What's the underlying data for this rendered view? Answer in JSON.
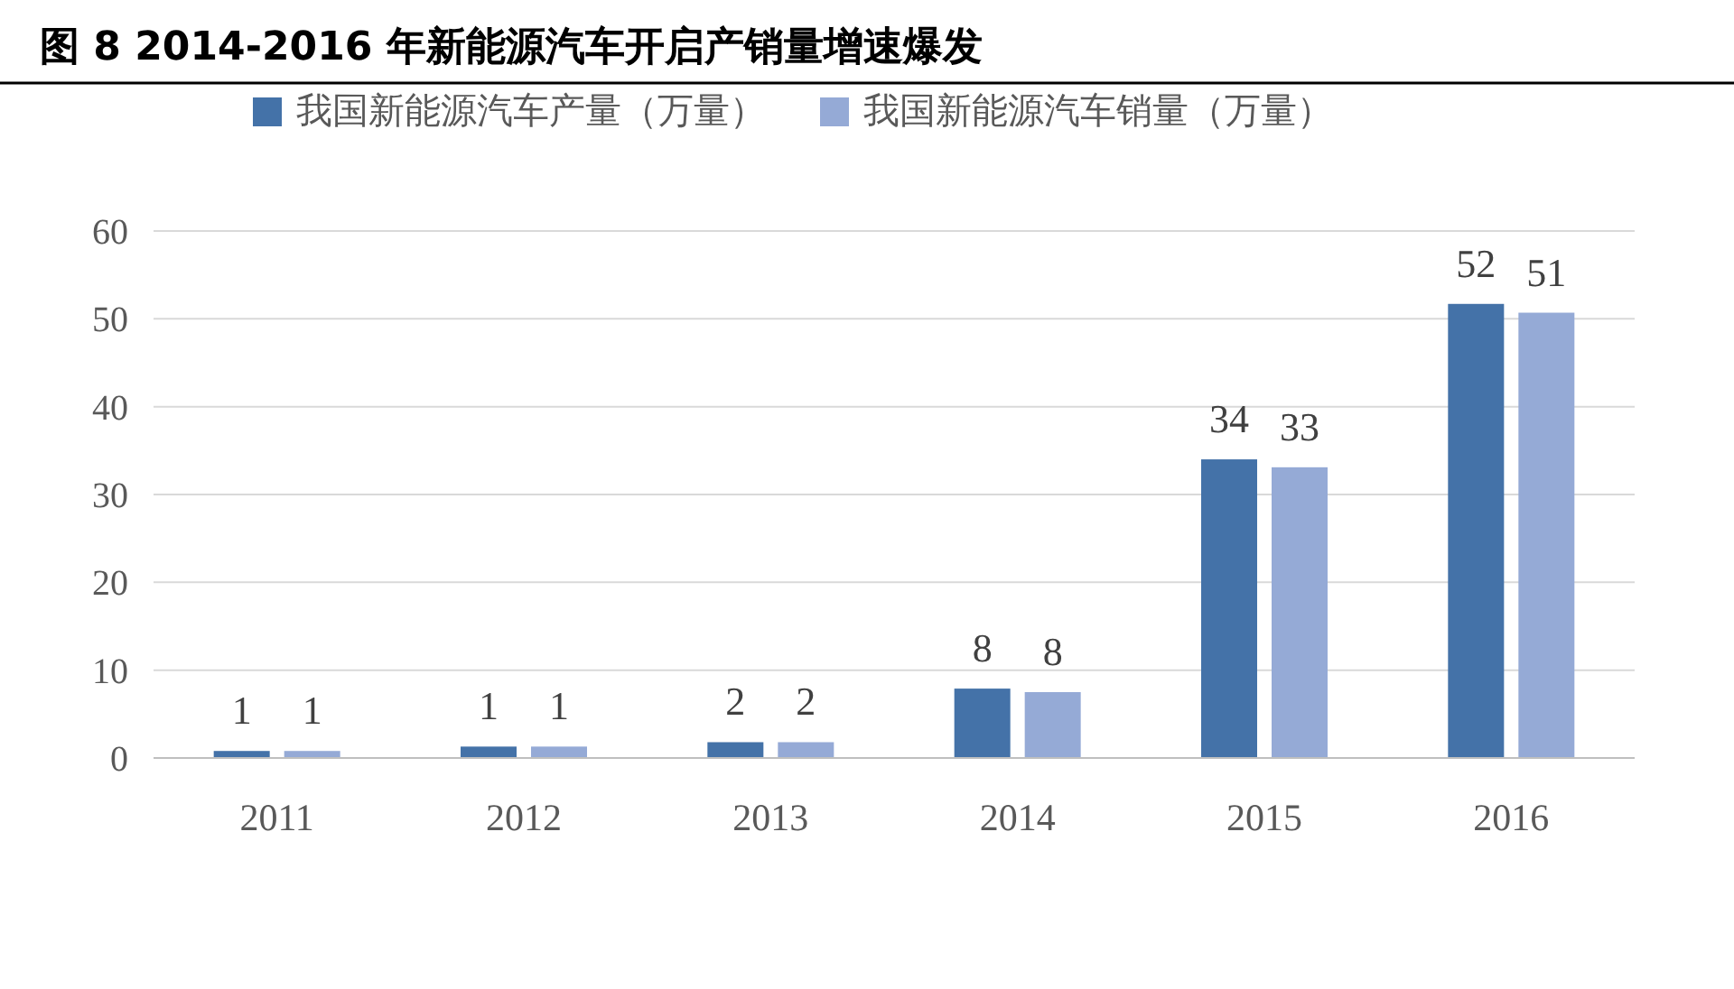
{
  "chart_data": {
    "type": "bar",
    "title": "图 8  2014-2016 年新能源汽车开启产销量增速爆发",
    "categories": [
      "2011",
      "2012",
      "2013",
      "2014",
      "2015",
      "2016"
    ],
    "series": [
      {
        "name": "我国新能源汽车产量（万量）",
        "color": "#4472a8",
        "values": [
          0.8,
          1.3,
          1.8,
          7.9,
          34.0,
          51.7
        ],
        "value_labels": [
          "1",
          "1",
          "2",
          "8",
          "34",
          "52"
        ]
      },
      {
        "name": "我国新能源汽车销量（万量）",
        "color": "#95aad6",
        "values": [
          0.8,
          1.3,
          1.8,
          7.5,
          33.1,
          50.7
        ],
        "value_labels": [
          "1",
          "1",
          "2",
          "8",
          "33",
          "51"
        ]
      }
    ],
    "ylim": [
      0,
      60
    ],
    "yticks": [
      0,
      10,
      20,
      30,
      40,
      50,
      60
    ],
    "grid": "y",
    "legend": "top"
  }
}
